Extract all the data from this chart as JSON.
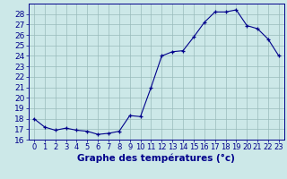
{
  "hours": [
    0,
    1,
    2,
    3,
    4,
    5,
    6,
    7,
    8,
    9,
    10,
    11,
    12,
    13,
    14,
    15,
    16,
    17,
    18,
    19,
    20,
    21,
    22,
    23
  ],
  "temps": [
    18.0,
    17.2,
    16.9,
    17.1,
    16.9,
    16.8,
    16.5,
    16.6,
    16.8,
    18.3,
    18.2,
    21.0,
    24.0,
    24.4,
    24.5,
    25.8,
    27.2,
    28.2,
    28.2,
    28.4,
    26.9,
    26.6,
    25.6,
    24.0
  ],
  "bg_color": "#cce8e8",
  "line_color": "#00008b",
  "marker_color": "#00008b",
  "grid_color": "#99bbbb",
  "axis_color": "#00008b",
  "title": "Graphe des températures (°c)",
  "ylim": [
    16,
    29
  ],
  "yticks": [
    16,
    17,
    18,
    19,
    20,
    21,
    22,
    23,
    24,
    25,
    26,
    27,
    28
  ],
  "xlim": [
    -0.5,
    23.5
  ],
  "tick_fontsize": 6.5,
  "xlabel_fontsize": 7.5
}
